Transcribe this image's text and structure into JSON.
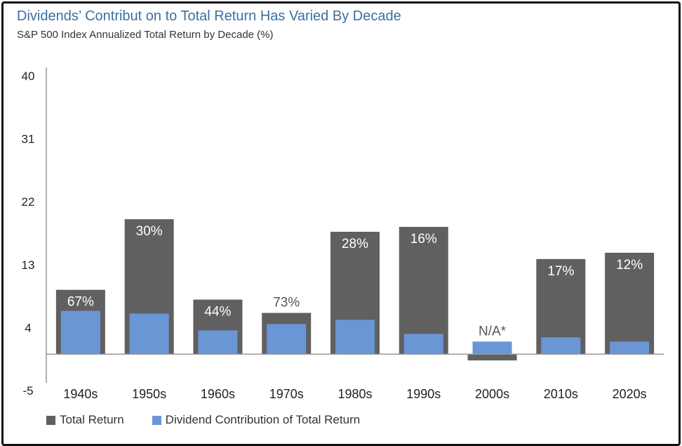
{
  "title": "Dividends’ Contribut on to Total Return Has Varied By Decade",
  "subtitle": "S&P 500 Index Annualized Total Return by Decade (%)",
  "colors": {
    "total": "#606060",
    "dividend": "#6a96d6",
    "label_on_bar": "#ffffff",
    "label_off_bar": "#555555",
    "axis": "#999999"
  },
  "chart_data": {
    "type": "bar",
    "categories": [
      "1940s",
      "1950s",
      "1960s",
      "1970s",
      "1980s",
      "1990s",
      "2000s",
      "2010s",
      "2020s"
    ],
    "yticks": [
      40,
      31,
      22,
      13,
      4,
      -5
    ],
    "ylim": [
      -5,
      40
    ],
    "series": [
      {
        "name": "Total Return",
        "values": [
          9.2,
          19.3,
          7.8,
          5.9,
          17.5,
          18.2,
          -0.9,
          13.6,
          14.5
        ]
      },
      {
        "name": "Dividend Contribution of Total Return",
        "values": [
          6.2,
          5.8,
          3.4,
          4.3,
          4.9,
          2.9,
          1.8,
          2.4,
          1.8
        ]
      }
    ],
    "bar_labels": [
      "67%",
      "30%",
      "44%",
      "73%",
      "28%",
      "16%",
      "N/A*",
      "17%",
      "12%"
    ],
    "legend_position": "bottom-left",
    "grid": false
  },
  "legend": [
    {
      "label": "Total Return"
    },
    {
      "label": "Dividend Contribution of Total Return"
    }
  ]
}
